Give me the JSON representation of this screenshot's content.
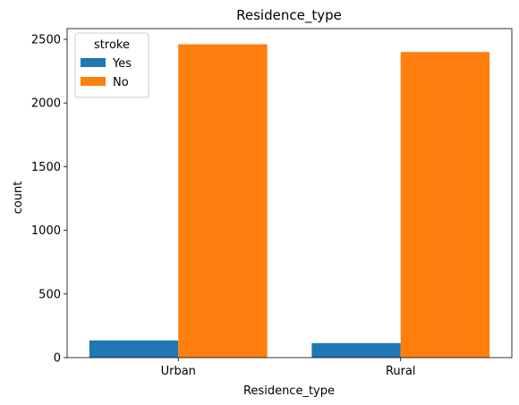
{
  "chart_data": {
    "type": "bar",
    "title": "Residence_type",
    "xlabel": "Residence_type",
    "ylabel": "count",
    "categories": [
      "Urban",
      "Rural"
    ],
    "series": [
      {
        "name": "Yes",
        "values": [
          135,
          114
        ],
        "color": "#1f77b4"
      },
      {
        "name": "No",
        "values": [
          2461,
          2400
        ],
        "color": "#ff7f0e"
      }
    ],
    "ylim": [
      0,
      2584
    ],
    "yticks": [
      0,
      500,
      1000,
      1500,
      2000,
      2500
    ],
    "ytick_labels": [
      "0",
      "500",
      "1000",
      "1500",
      "2000",
      "2500"
    ],
    "legend": {
      "title": "stroke",
      "position": "top-left"
    },
    "grid": false
  }
}
